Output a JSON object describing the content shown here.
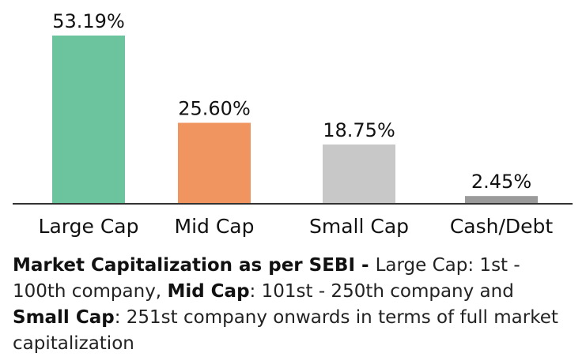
{
  "chart_data": {
    "type": "bar",
    "categories": [
      "Large Cap",
      "Mid Cap",
      "Small Cap",
      "Cash/Debt"
    ],
    "values": [
      53.19,
      25.6,
      18.75,
      2.45
    ],
    "value_labels": [
      "53.19%",
      "25.60%",
      "18.75%",
      "2.45%"
    ],
    "colors": [
      "#6cc49e",
      "#f0955f",
      "#c8c8c8",
      "#9a9a9a"
    ],
    "ylim": [
      0,
      53.19
    ],
    "grid": false,
    "legend": "none"
  },
  "note": {
    "heading": "Market Capitalization as per SEBI - ",
    "large_term": "Large Cap",
    "large_def": ": 1st - 100th company, ",
    "mid_term": "Mid Cap",
    "mid_def": ": 101st - 250th company and ",
    "small_term": "Small Cap",
    "small_def": ": 251st company onwards in terms of full market capitalization"
  }
}
